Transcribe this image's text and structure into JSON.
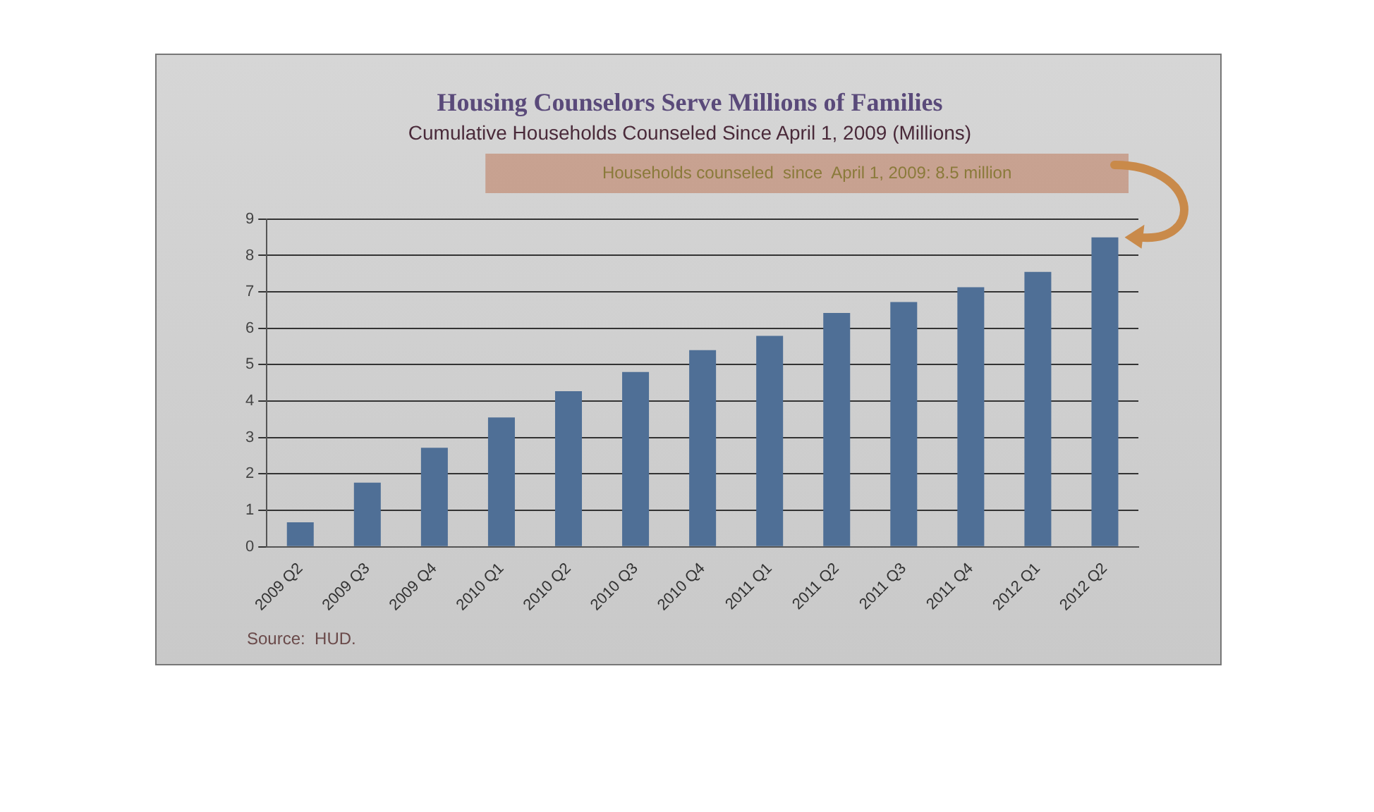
{
  "chart_data": {
    "type": "bar",
    "title": "Housing Counselors Serve Millions of Families",
    "subtitle": "Cumulative Households Counseled Since April 1, 2009 (Millions)",
    "categories": [
      "2009 Q2",
      "2009 Q3",
      "2009 Q4",
      "2010 Q1",
      "2010 Q2",
      "2010 Q3",
      "2010 Q4",
      "2011 Q1",
      "2011 Q2",
      "2011 Q3",
      "2011 Q4",
      "2012 Q1",
      "2012 Q2"
    ],
    "values": [
      0.67,
      1.76,
      2.72,
      3.55,
      4.27,
      4.8,
      5.4,
      5.79,
      6.42,
      6.72,
      7.13,
      7.55,
      8.5
    ],
    "color": "#4f6f96",
    "ylim": [
      0,
      9
    ],
    "yticks": [
      0,
      1,
      2,
      3,
      4,
      5,
      6,
      7,
      8,
      9
    ],
    "grid": "y",
    "annotations": [
      "Households counseled  since  April 1, 2009: 8.5 million",
      "Source:  HUD."
    ]
  }
}
